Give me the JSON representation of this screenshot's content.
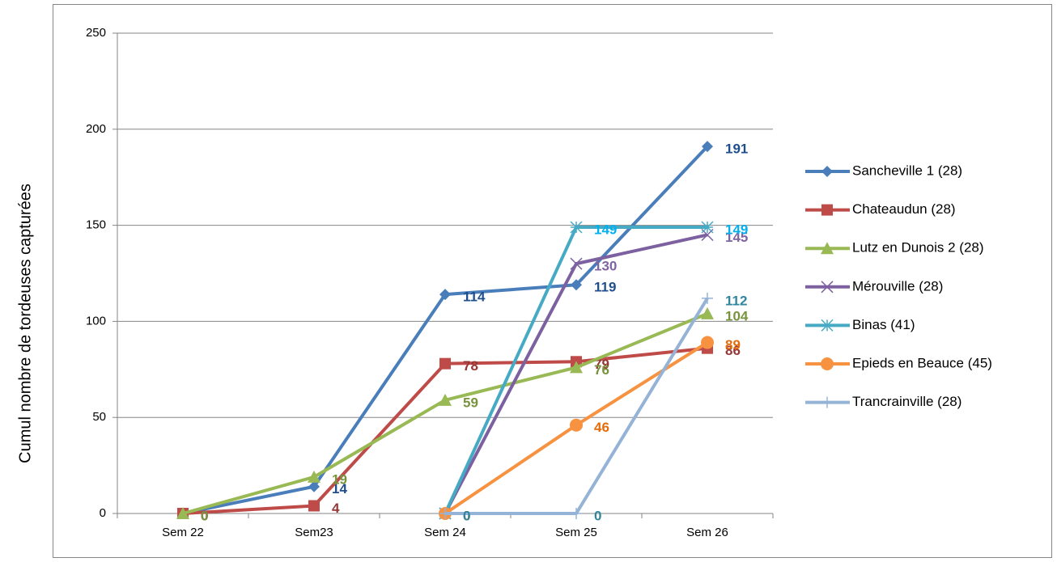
{
  "chart_data": {
    "type": "line",
    "y_label": "Cumul nombre de tordeuses capturées",
    "categories": [
      "Sem 22",
      "Sem23",
      "Sem 24",
      "Sem 25",
      "Sem 26"
    ],
    "ylim": [
      0,
      250
    ],
    "yticks": [
      0,
      50,
      100,
      150,
      200,
      250
    ],
    "grid": true,
    "legend": "right",
    "series": [
      {
        "name": "Sancheville 1 (28)",
        "color": "#4a7ebb",
        "label_color": "#1f4e8c",
        "marker": "diamond",
        "values": [
          0,
          14,
          114,
          119,
          191
        ]
      },
      {
        "name": "Chateaudun (28)",
        "color": "#be4b48",
        "label_color": "#953735",
        "marker": "square",
        "values": [
          0,
          4,
          78,
          79,
          86
        ]
      },
      {
        "name": "Lutz en Dunois 2 (28)",
        "color": "#98b954",
        "label_color": "#77933c",
        "marker": "triangle",
        "values": [
          0,
          19,
          59,
          76,
          104
        ]
      },
      {
        "name": "Mérouville (28)",
        "color": "#7d60a0",
        "label_color": "#8064a2",
        "marker": "x",
        "values": [
          null,
          null,
          0,
          130,
          145
        ]
      },
      {
        "name": "Binas (41)",
        "color": "#46aac5",
        "label_color": "#00b0f0",
        "marker": "star",
        "values": [
          null,
          null,
          0,
          149,
          149
        ]
      },
      {
        "name": "Epieds en Beauce (45)",
        "color": "#f69240",
        "label_color": "#e46c0a",
        "marker": "circle",
        "values": [
          null,
          null,
          0,
          46,
          89
        ]
      },
      {
        "name": "Trancrainville (28)",
        "color": "#95b3d7",
        "label_color": "#31859c",
        "marker": "plus",
        "values": [
          null,
          null,
          0,
          0,
          112
        ]
      }
    ]
  }
}
